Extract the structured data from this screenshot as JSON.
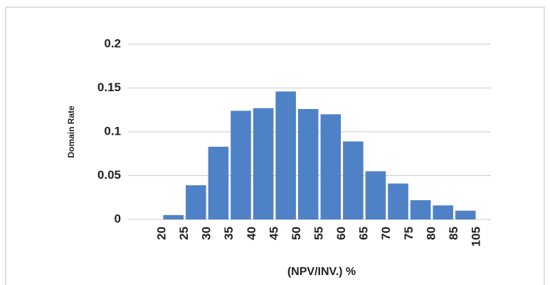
{
  "chart_data": {
    "type": "histogram",
    "y_label": "Domain Rate",
    "x_label": "(NPV/INV.) %",
    "bins": [
      20,
      25,
      30,
      35,
      40,
      45,
      50,
      55,
      60,
      65,
      70,
      75,
      80,
      85,
      105
    ],
    "values": [
      0.005,
      0.039,
      0.083,
      0.124,
      0.127,
      0.146,
      0.126,
      0.12,
      0.089,
      0.055,
      0.041,
      0.022,
      0.016,
      0.01
    ],
    "color": "#4f81c7",
    "ylim": [
      0,
      0.2
    ],
    "yticks": [
      0,
      0.05,
      0.1,
      0.15,
      0.2
    ],
    "grid": true
  }
}
